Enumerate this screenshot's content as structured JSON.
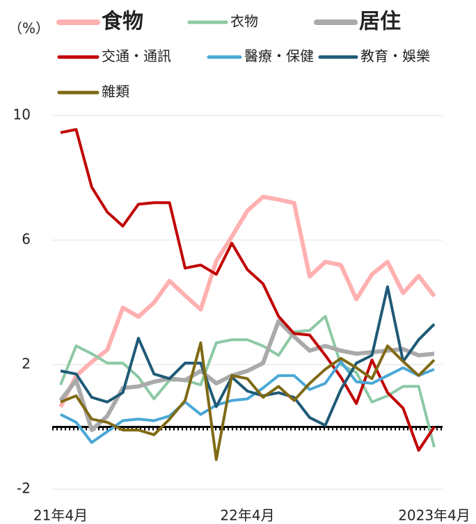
{
  "chart_data": {
    "type": "line",
    "y_label": "（%）",
    "categories": [
      "21年4月",
      null,
      null,
      null,
      null,
      null,
      null,
      null,
      null,
      null,
      null,
      null,
      "22年4月",
      null,
      null,
      null,
      null,
      null,
      null,
      null,
      null,
      null,
      null,
      null,
      "2023年4月"
    ],
    "ylim": [
      -2,
      10
    ],
    "yticks": [
      -2,
      2,
      6,
      10
    ],
    "grid": true,
    "zero_line": true,
    "negative_tick_color": "#e00000",
    "series": [
      {
        "name": "食物",
        "color": "#ffb0b0",
        "bold": true,
        "values": [
          0.64,
          1.64,
          2.09,
          2.47,
          3.83,
          3.54,
          3.99,
          4.69,
          4.22,
          3.77,
          5.33,
          6.11,
          6.94,
          7.39,
          7.3,
          7.19,
          4.83,
          5.3,
          5.2,
          4.1,
          4.9,
          5.3,
          4.3,
          4.85,
          4.2
        ]
      },
      {
        "name": "衣物",
        "color": "#8cc9a4",
        "values": [
          1.35,
          2.6,
          2.35,
          2.05,
          2.05,
          1.6,
          0.9,
          1.5,
          1.5,
          1.35,
          2.7,
          2.8,
          2.8,
          2.6,
          2.3,
          3.05,
          3.1,
          3.55,
          2.0,
          1.75,
          0.8,
          1.0,
          1.3,
          1.3,
          -0.65
        ]
      },
      {
        "name": "居住",
        "color": "#aaaaaa",
        "bold": true,
        "values": [
          0.85,
          1.5,
          -0.1,
          0.35,
          1.25,
          1.3,
          1.45,
          1.55,
          1.5,
          1.8,
          1.4,
          1.65,
          1.8,
          2.05,
          3.4,
          2.9,
          2.45,
          2.6,
          2.45,
          2.35,
          2.4,
          2.45,
          2.5,
          2.3,
          2.35
        ]
      },
      {
        "name": "交通・通訊",
        "color": "#c00000",
        "values": [
          9.45,
          9.55,
          7.7,
          6.9,
          6.45,
          7.15,
          7.2,
          7.2,
          5.1,
          5.2,
          4.9,
          5.9,
          5.05,
          4.6,
          3.55,
          3.0,
          2.95,
          2.3,
          1.6,
          0.75,
          2.15,
          1.1,
          0.6,
          -0.75,
          0.0
        ]
      },
      {
        "name": "醫療・保健",
        "color": "#4aa7d6",
        "values": [
          0.4,
          0.15,
          -0.5,
          -0.15,
          0.2,
          0.25,
          0.2,
          0.35,
          0.8,
          0.4,
          0.7,
          0.85,
          0.9,
          1.25,
          1.65,
          1.65,
          1.2,
          1.4,
          2.1,
          1.45,
          1.4,
          1.65,
          1.9,
          1.65,
          1.85
        ]
      },
      {
        "name": "教育・娛樂",
        "color": "#1f5a77",
        "values": [
          1.8,
          1.7,
          0.95,
          0.8,
          1.1,
          2.85,
          1.7,
          1.55,
          2.05,
          2.05,
          0.65,
          1.6,
          1.15,
          1.0,
          1.1,
          0.95,
          0.3,
          0.05,
          1.2,
          2.05,
          2.3,
          4.5,
          2.1,
          2.8,
          3.3
        ]
      },
      {
        "name": "雜類",
        "color": "#806a14",
        "values": [
          0.8,
          1.0,
          0.25,
          0.15,
          -0.1,
          -0.1,
          -0.25,
          0.25,
          0.85,
          2.7,
          -1.05,
          1.65,
          1.55,
          0.95,
          1.3,
          0.85,
          1.4,
          1.85,
          2.2,
          1.9,
          1.55,
          2.6,
          2.1,
          1.65,
          2.15
        ]
      }
    ]
  }
}
